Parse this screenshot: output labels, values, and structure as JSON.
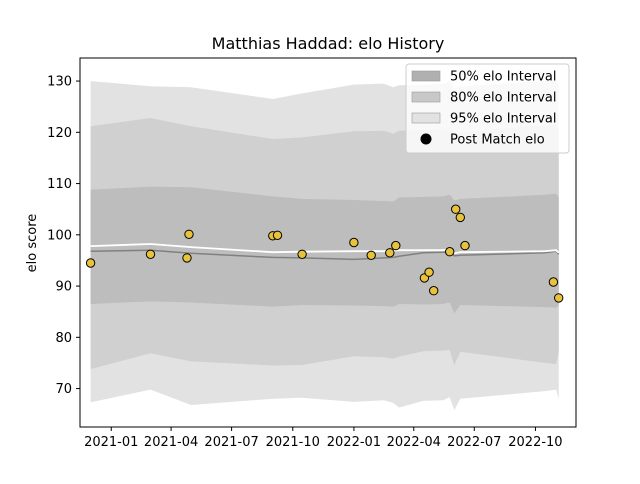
{
  "chart_data": {
    "type": "line",
    "title": "Matthias Haddad: elo History",
    "xlabel": "",
    "ylabel": "elo score",
    "x_range": [
      "2020-11-15",
      "2022-12-01"
    ],
    "ylim": [
      62.5,
      134.5
    ],
    "x_ticks": [
      {
        "date": "2021-01-01",
        "label": "2021-01"
      },
      {
        "date": "2021-04-01",
        "label": "2021-04"
      },
      {
        "date": "2021-07-01",
        "label": "2021-07"
      },
      {
        "date": "2021-10-01",
        "label": "2021-10"
      },
      {
        "date": "2022-01-01",
        "label": "2022-01"
      },
      {
        "date": "2022-04-01",
        "label": "2022-04"
      },
      {
        "date": "2022-07-01",
        "label": "2022-07"
      },
      {
        "date": "2022-10-01",
        "label": "2022-10"
      }
    ],
    "y_ticks": [
      70,
      80,
      90,
      100,
      110,
      120,
      130
    ],
    "grid": false,
    "legend_position": "top-right",
    "legend": [
      {
        "label": "50% elo Interval",
        "kind": "band",
        "color": "#b0b0b0"
      },
      {
        "label": "80% elo Interval",
        "kind": "band",
        "color": "#c8c8c8"
      },
      {
        "label": "95% elo Interval",
        "kind": "band",
        "color": "#e2e2e2"
      },
      {
        "label": "Post Match elo",
        "kind": "dot",
        "color": "#000000"
      }
    ],
    "colors": {
      "band_95": "#e2e2e2",
      "band_80": "#d0d0d0",
      "band_50": "#bdbdbd",
      "median_line": "#808080",
      "mean_line": "#ffffff",
      "point_fill": "#e8c23a",
      "point_edge": "#000000"
    },
    "bands": {
      "dates": [
        "2020-12-01",
        "2021-03-01",
        "2021-05-01",
        "2021-09-01",
        "2021-10-15",
        "2022-01-01",
        "2022-02-15",
        "2022-03-01",
        "2022-03-10",
        "2022-04-15",
        "2022-05-15",
        "2022-05-25",
        "2022-06-01",
        "2022-06-10",
        "2022-10-15",
        "2022-11-01",
        "2022-11-05"
      ],
      "p95_upper": [
        130.0,
        129.0,
        128.8,
        126.5,
        127.6,
        129.3,
        129.5,
        128.8,
        129.2,
        129.3,
        129.4,
        130.0,
        128.5,
        129.0,
        130.0,
        130.2,
        129.5
      ],
      "p80_upper": [
        121.2,
        122.8,
        121.2,
        118.7,
        119.0,
        120.2,
        120.3,
        119.7,
        120.3,
        120.5,
        120.6,
        121.0,
        119.6,
        120.0,
        121.4,
        121.6,
        120.8
      ],
      "p50_upper": [
        108.8,
        109.4,
        109.3,
        107.5,
        107.0,
        106.8,
        106.6,
        106.5,
        107.3,
        107.4,
        107.5,
        107.8,
        106.7,
        107.0,
        107.8,
        108.0,
        107.4
      ],
      "p50_lower": [
        86.5,
        87.0,
        86.8,
        86.0,
        86.3,
        86.2,
        86.1,
        86.0,
        86.5,
        86.4,
        86.5,
        86.8,
        84.7,
        86.3,
        85.9,
        85.8,
        86.2
      ],
      "p80_lower": [
        73.8,
        76.9,
        75.3,
        74.5,
        74.6,
        76.3,
        76.1,
        75.8,
        76.2,
        77.3,
        77.4,
        77.5,
        74.5,
        77.2,
        75.0,
        74.8,
        77.0
      ],
      "p95_lower": [
        67.3,
        69.8,
        66.8,
        68.0,
        68.2,
        67.4,
        67.7,
        67.2,
        66.3,
        67.6,
        67.7,
        68.3,
        65.8,
        68.0,
        69.5,
        69.8,
        68.0
      ],
      "median": [
        96.8,
        97.0,
        96.4,
        95.6,
        95.5,
        95.2,
        95.5,
        95.6,
        95.8,
        96.5,
        96.6,
        96.7,
        95.9,
        96.0,
        96.5,
        96.8,
        96.2
      ],
      "mean": [
        97.8,
        98.2,
        97.6,
        96.6,
        96.7,
        96.8,
        96.8,
        96.9,
        97.0,
        97.0,
        97.0,
        97.2,
        96.4,
        96.6,
        96.8,
        97.0,
        96.5
      ]
    },
    "points": [
      {
        "date": "2020-12-01",
        "elo": 94.5
      },
      {
        "date": "2021-03-01",
        "elo": 96.2
      },
      {
        "date": "2021-04-25",
        "elo": 95.5
      },
      {
        "date": "2021-04-28",
        "elo": 100.1
      },
      {
        "date": "2021-09-01",
        "elo": 99.8
      },
      {
        "date": "2021-09-08",
        "elo": 99.9
      },
      {
        "date": "2021-10-15",
        "elo": 96.2
      },
      {
        "date": "2022-01-01",
        "elo": 98.5
      },
      {
        "date": "2022-01-27",
        "elo": 96.0
      },
      {
        "date": "2022-02-24",
        "elo": 96.5
      },
      {
        "date": "2022-03-05",
        "elo": 97.9
      },
      {
        "date": "2022-04-17",
        "elo": 91.6
      },
      {
        "date": "2022-04-24",
        "elo": 92.7
      },
      {
        "date": "2022-05-01",
        "elo": 89.1
      },
      {
        "date": "2022-05-25",
        "elo": 96.7
      },
      {
        "date": "2022-06-03",
        "elo": 105.0
      },
      {
        "date": "2022-06-10",
        "elo": 103.4
      },
      {
        "date": "2022-06-17",
        "elo": 97.9
      },
      {
        "date": "2022-10-28",
        "elo": 90.8
      },
      {
        "date": "2022-11-05",
        "elo": 87.7
      }
    ]
  }
}
